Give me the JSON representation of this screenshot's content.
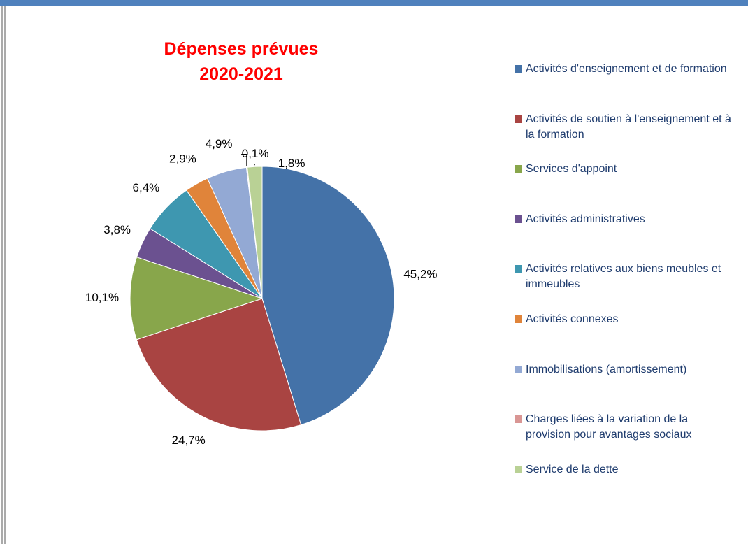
{
  "chart_data": {
    "type": "pie",
    "title": "Dépenses prévues 2020-2021",
    "categories": [
      "Activités d'enseignement et de formation",
      "Activités de soutien à l'enseignement et à la formation",
      "Services d'appoint",
      "Activités administratives",
      "Activités relatives aux biens meubles et immeubles",
      "Activités connexes",
      "Immobilisations (amortissement)",
      "Charges liées à la variation de la provision pour avantages sociaux",
      "Service de la dette"
    ],
    "values": [
      45.2,
      24.7,
      10.1,
      3.8,
      6.4,
      2.9,
      4.9,
      0.1,
      1.8
    ],
    "value_labels": [
      "45,2%",
      "24,7%",
      "10,1%",
      "3,8%",
      "6,4%",
      "2,9%",
      "4,9%",
      "0,1%",
      "1,8%"
    ],
    "colors": [
      "#4472a8",
      "#a94442",
      "#88a64b",
      "#6b5190",
      "#3e97b0",
      "#e0843a",
      "#93a9d4",
      "#d99694",
      "#b9d195"
    ],
    "legend": "right"
  }
}
